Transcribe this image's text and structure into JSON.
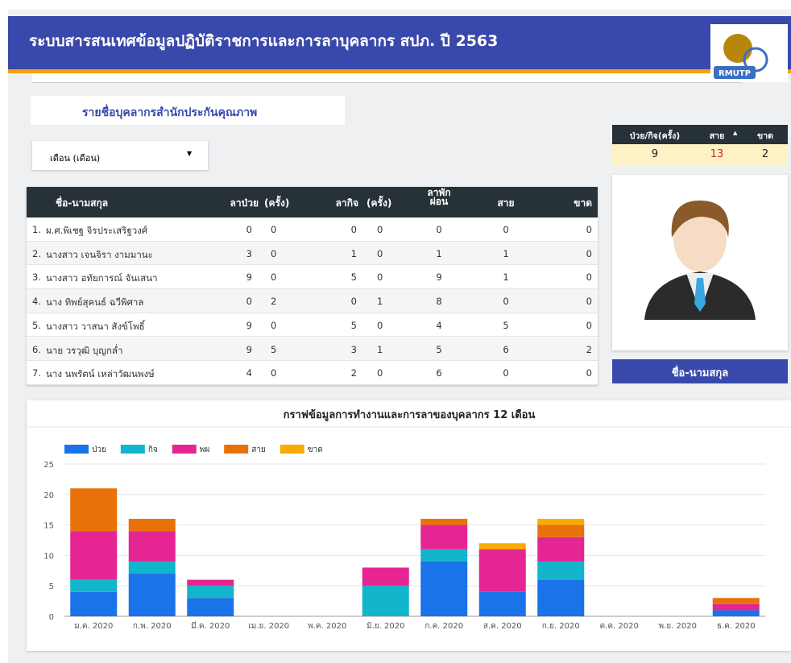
{
  "header": {
    "title": "ระบบสารสนเทศข้อมูลปฏิบัติราชการและการลาบุคลากร สปภ. ปี 2563",
    "logo": "RMUTP"
  },
  "section_title": "รายชื่อบุคลากรสำนักประกันคุณภาพ",
  "dropdown": "เดือน (เดือน)",
  "summary": {
    "headers": [
      "ป่วย/กิจ(ครั้ง)",
      "สาย",
      "ขาด"
    ],
    "values": [
      9,
      13,
      2
    ]
  },
  "profile_name": "ชื่อ-นามสกุล",
  "table": {
    "headers": [
      "ชื่อ-นามสกุล",
      "ลาป่วย",
      "(ครั้ง)",
      "ลากิจ",
      "(ครั้ง)",
      "ลาพัก ผ่อน",
      "สาย",
      "ขาด"
    ],
    "rows": [
      [
        "1.",
        "ผ.ศ.พิเชฐ จิรประเสริฐวงศ์",
        0,
        0,
        0,
        0,
        0,
        0,
        0
      ],
      [
        "2.",
        "นางสาว เจนจิรา งามมานะ",
        3,
        0,
        1,
        0,
        1,
        1,
        0
      ],
      [
        "3.",
        "นางสาว อทัยการณ์ จันเสนา",
        9,
        0,
        5,
        0,
        9,
        1,
        0
      ],
      [
        "4.",
        "นาง ทิพย์สุคนธ์ ฉวีพิศาล",
        0,
        2,
        0,
        1,
        8,
        0,
        0
      ],
      [
        "5.",
        "นางสาว วาสนา สังข์โพธิ์",
        9,
        0,
        5,
        0,
        4,
        5,
        0
      ],
      [
        "6.",
        "นาย วรวุฒิ บุญกล่ำ",
        9,
        5,
        3,
        1,
        5,
        6,
        2
      ],
      [
        "7.",
        "นาง นพรัตน์ เหล่าวัฒนพงษ์",
        4,
        0,
        2,
        0,
        6,
        0,
        0
      ]
    ]
  },
  "chart_data": {
    "type": "stacked_bar",
    "title": "กราฟข้อมูลการทำงานและการลาของบุคลากร 12 เดือน",
    "categories": [
      "ม.ค. 2020",
      "ก.พ. 2020",
      "มี.ค. 2020",
      "เม.ย. 2020",
      "พ.ค. 2020",
      "มิ.ย. 2020",
      "ก.ค. 2020",
      "ส.ค. 2020",
      "ก.ย. 2020",
      "ต.ค. 2020",
      "พ.ย. 2020",
      "ธ.ค. 2020"
    ],
    "series": [
      {
        "name": "ป่วย",
        "color": "#1a73e8",
        "values": [
          4,
          7,
          3,
          0,
          0,
          0,
          9,
          4,
          6,
          0,
          0,
          1
        ]
      },
      {
        "name": "กิจ",
        "color": "#12b5cb",
        "values": [
          2,
          2,
          2,
          0,
          0,
          5,
          2,
          0,
          3,
          0,
          0,
          0
        ]
      },
      {
        "name": "พผ",
        "color": "#e52592",
        "values": [
          8,
          5,
          1,
          0,
          0,
          3,
          4,
          7,
          4,
          0,
          0,
          1
        ]
      },
      {
        "name": "สาย",
        "color": "#e8710a",
        "values": [
          7,
          2,
          0,
          0,
          0,
          0,
          1,
          0,
          2,
          0,
          0,
          1
        ]
      },
      {
        "name": "ขาด",
        "color": "#f9ab00",
        "values": [
          0,
          0,
          0,
          0,
          0,
          0,
          0,
          1,
          1,
          0,
          0,
          0
        ]
      }
    ],
    "ylim": [
      0,
      25
    ],
    "yticks": [
      0,
      5,
      10,
      15,
      20,
      25
    ],
    "grid": true,
    "legend": "top"
  }
}
